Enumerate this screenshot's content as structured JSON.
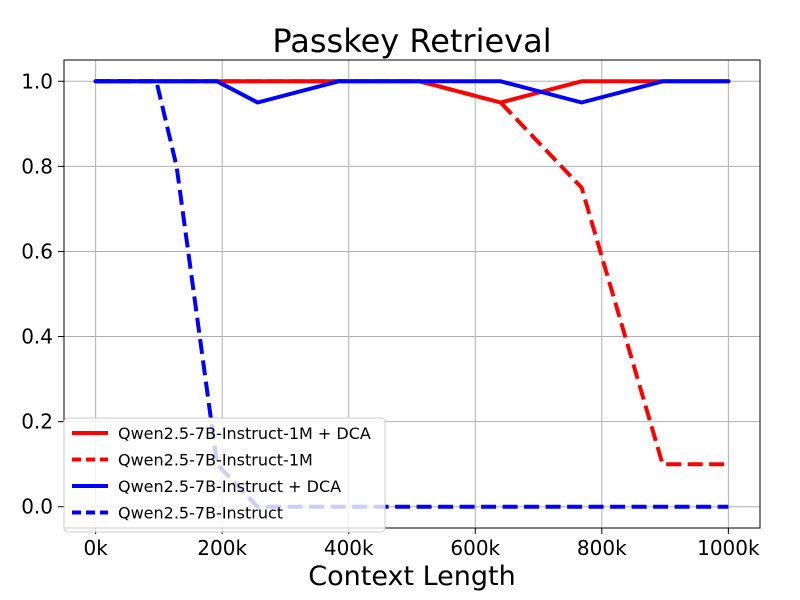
{
  "chart_data": {
    "type": "line",
    "title": "Passkey Retrieval",
    "xlabel": "Context Length",
    "ylabel": "",
    "xlim": [
      -50000,
      1050000
    ],
    "ylim": [
      -0.05,
      1.05
    ],
    "xticks": [
      0,
      200000,
      400000,
      600000,
      800000,
      1000000
    ],
    "xtick_labels": [
      "0k",
      "200k",
      "400k",
      "600k",
      "800k",
      "1000k"
    ],
    "yticks": [
      0.0,
      0.2,
      0.4,
      0.6,
      0.8,
      1.0
    ],
    "ytick_labels": [
      "0.0",
      "0.2",
      "0.4",
      "0.6",
      "0.8",
      "1.0"
    ],
    "grid": true,
    "legend_position": "bottom-left",
    "series": [
      {
        "name": "Qwen2.5-7B-Instruct-1M + DCA",
        "color": "#ff0000",
        "style": "solid",
        "x": [
          0,
          128000,
          256000,
          384000,
          512000,
          640000,
          768000,
          896000,
          1000000
        ],
        "y": [
          1.0,
          1.0,
          1.0,
          1.0,
          1.0,
          0.95,
          1.0,
          1.0,
          1.0
        ]
      },
      {
        "name": "Qwen2.5-7B-Instruct-1M",
        "color": "#ff0000",
        "style": "dashed",
        "x": [
          0,
          128000,
          256000,
          384000,
          512000,
          640000,
          768000,
          896000,
          1000000
        ],
        "y": [
          1.0,
          1.0,
          1.0,
          1.0,
          1.0,
          0.95,
          0.75,
          0.1,
          0.1
        ]
      },
      {
        "name": "Qwen2.5-7B-Instruct + DCA",
        "color": "#0000ff",
        "style": "solid",
        "x": [
          0,
          128000,
          192000,
          256000,
          384000,
          512000,
          640000,
          768000,
          896000,
          1000000
        ],
        "y": [
          1.0,
          1.0,
          1.0,
          0.95,
          1.0,
          1.0,
          1.0,
          0.95,
          1.0,
          1.0
        ]
      },
      {
        "name": "Qwen2.5-7B-Instruct",
        "color": "#0000ff",
        "style": "dashed",
        "x": [
          0,
          96000,
          128000,
          192000,
          256000,
          384000,
          512000,
          640000,
          768000,
          896000,
          1000000
        ],
        "y": [
          1.0,
          1.0,
          0.8,
          0.1,
          0.0,
          0.0,
          0.0,
          0.0,
          0.0,
          0.0,
          0.0
        ]
      }
    ]
  }
}
